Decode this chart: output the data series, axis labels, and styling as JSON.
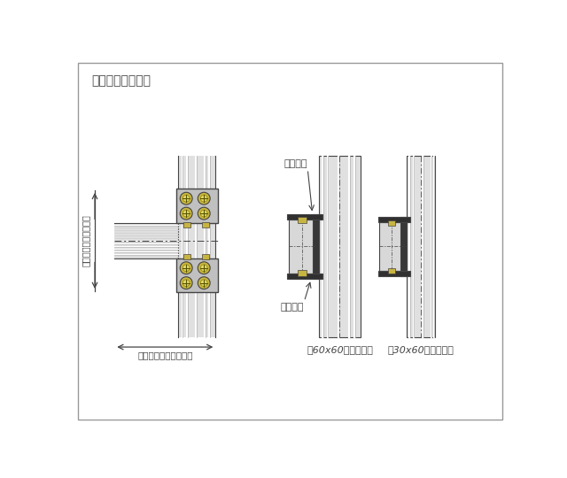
{
  "title": "［　調整機構　］",
  "label_tate": "縦面ネジを締めて移動",
  "label_yoko_arrow": "横面ネジを締めて移動",
  "label_tate_neji": "縦面ネジ",
  "label_yoko_neji": "横面ネジ",
  "label_60x60": "［60x60フレーム］",
  "label_30x60": "［30x60フレーム］",
  "lc": "#444444",
  "col_fill": "#e0e0e0",
  "col_stripe_w": "#ffffff",
  "col_stripe_d": "#b0b0b0",
  "clamp_fill": "#c0c0c0",
  "plate_fill": "#505050",
  "gold_outer": "#c8b440",
  "gold_inner": "#e8d870",
  "arm_fill": "#d8d8d8"
}
